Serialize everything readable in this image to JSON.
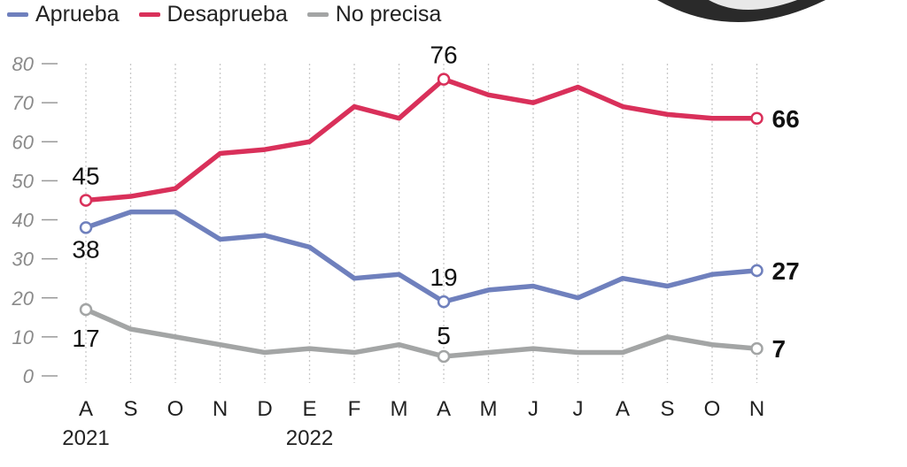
{
  "chart_data": {
    "type": "line",
    "categories": [
      "A",
      "S",
      "O",
      "N",
      "D",
      "E",
      "F",
      "M",
      "A",
      "M",
      "J",
      "J",
      "A",
      "S",
      "O",
      "N"
    ],
    "year_labels": [
      {
        "index": 0,
        "label": "2021"
      },
      {
        "index": 5,
        "label": "2022"
      }
    ],
    "ylim": [
      0,
      80
    ],
    "yticks": [
      0,
      10,
      20,
      30,
      40,
      50,
      60,
      70,
      80
    ],
    "grid": "vertical dotted",
    "legend": "top-left",
    "series": [
      {
        "name": "Aprueba",
        "color": "#6f80bd",
        "values": [
          38,
          42,
          42,
          35,
          36,
          33,
          25,
          26,
          19,
          22,
          23,
          20,
          25,
          23,
          26,
          27
        ],
        "labeled": [
          0,
          8,
          15
        ]
      },
      {
        "name": "Desaprueba",
        "color": "#d9305a",
        "values": [
          45,
          46,
          48,
          57,
          58,
          60,
          69,
          66,
          76,
          72,
          70,
          74,
          69,
          67,
          66,
          66
        ],
        "labeled": [
          0,
          8,
          15
        ]
      },
      {
        "name": "No precisa",
        "color": "#a3a5a5",
        "values": [
          17,
          12,
          10,
          8,
          6,
          7,
          6,
          8,
          5,
          6,
          7,
          6,
          6,
          10,
          8,
          7
        ],
        "labeled": [
          0,
          8,
          15
        ]
      }
    ]
  }
}
